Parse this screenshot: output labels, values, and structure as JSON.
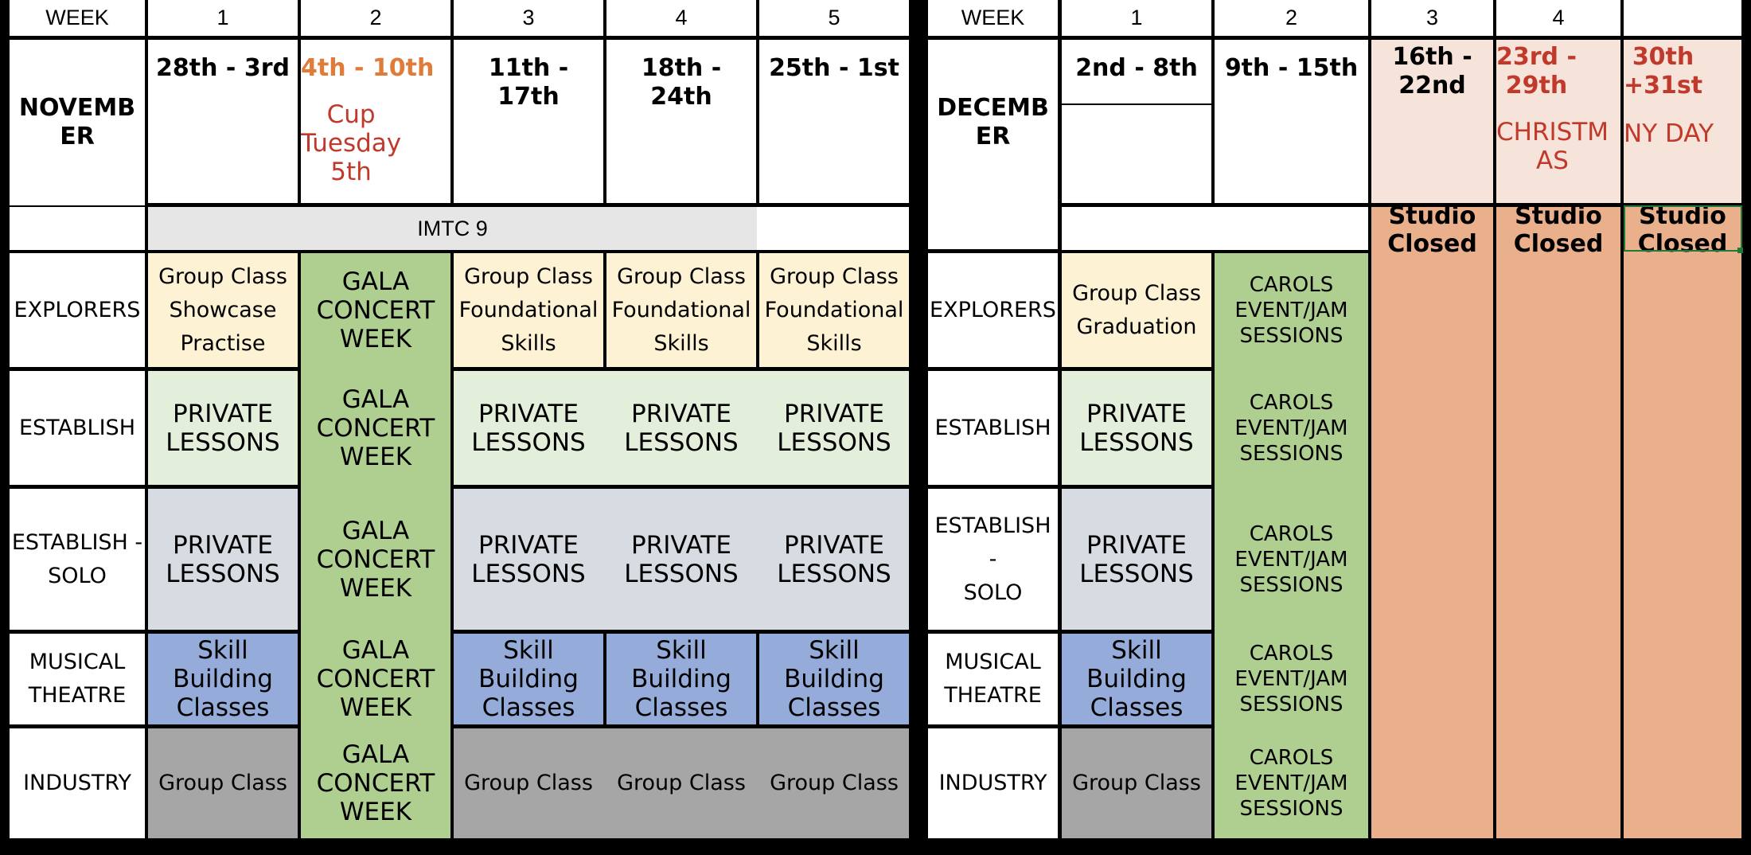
{
  "week_label": "WEEK",
  "rows": [
    "EXPLORERS",
    "ESTABLISH",
    "ESTABLISH -\nSOLO",
    "MUSICAL\nTHEATRE",
    "INDUSTRY"
  ],
  "november": {
    "month": "NOVEMB\nER",
    "weeks": [
      "1",
      "2",
      "3",
      "4",
      "5"
    ],
    "dates": [
      "28th - 3rd",
      "4th - 10th",
      "11th - 17th",
      "18th - 24th",
      "25th - 1st"
    ],
    "week2_note": "Cup\nTuesday\n5th",
    "banner": "IMTC 9",
    "explorers": {
      "showcase": "Group Class\nShowcase\nPractise",
      "foundational": "Group Class\nFoundational\nSkills"
    },
    "gala": "GALA\nCONCERT\nWEEK",
    "private": "PRIVATE\nLESSONS",
    "skill": "Skill\nBuilding\nClasses",
    "group": "Group Class"
  },
  "december": {
    "month": "DECEMB\nER",
    "weeks": [
      "1",
      "2",
      "3",
      "4"
    ],
    "dates": [
      "2nd - 8th",
      "9th - 15th",
      "16th -\n22nd",
      "23rd -\n29th",
      "30th\n+31st"
    ],
    "notes": [
      "CHRISTM\nAS",
      "NY DAY"
    ],
    "graduation": "Group Class\nGraduation",
    "carols": "CAROLS\nEVENT/JAM\nSESSIONS",
    "private": "PRIVATE\nLESSONS",
    "skill": "Skill\nBuilding\nClasses",
    "group": "Group Class",
    "closed": "Studio\nClosed"
  },
  "colors": {
    "date_orange": "#e07b39",
    "holiday_red": "#c0392b",
    "explorers_yellow": "#fdf2d3",
    "private_green": "#e3efdb",
    "gala_green": "#aecf8f",
    "solo_slate": "#d7dbe2",
    "theatre_blue": "#95abda",
    "industry_gray": "#a6a6a6",
    "holiday_peach": "#f6e3d9",
    "closed_orange": "#eab08b"
  }
}
